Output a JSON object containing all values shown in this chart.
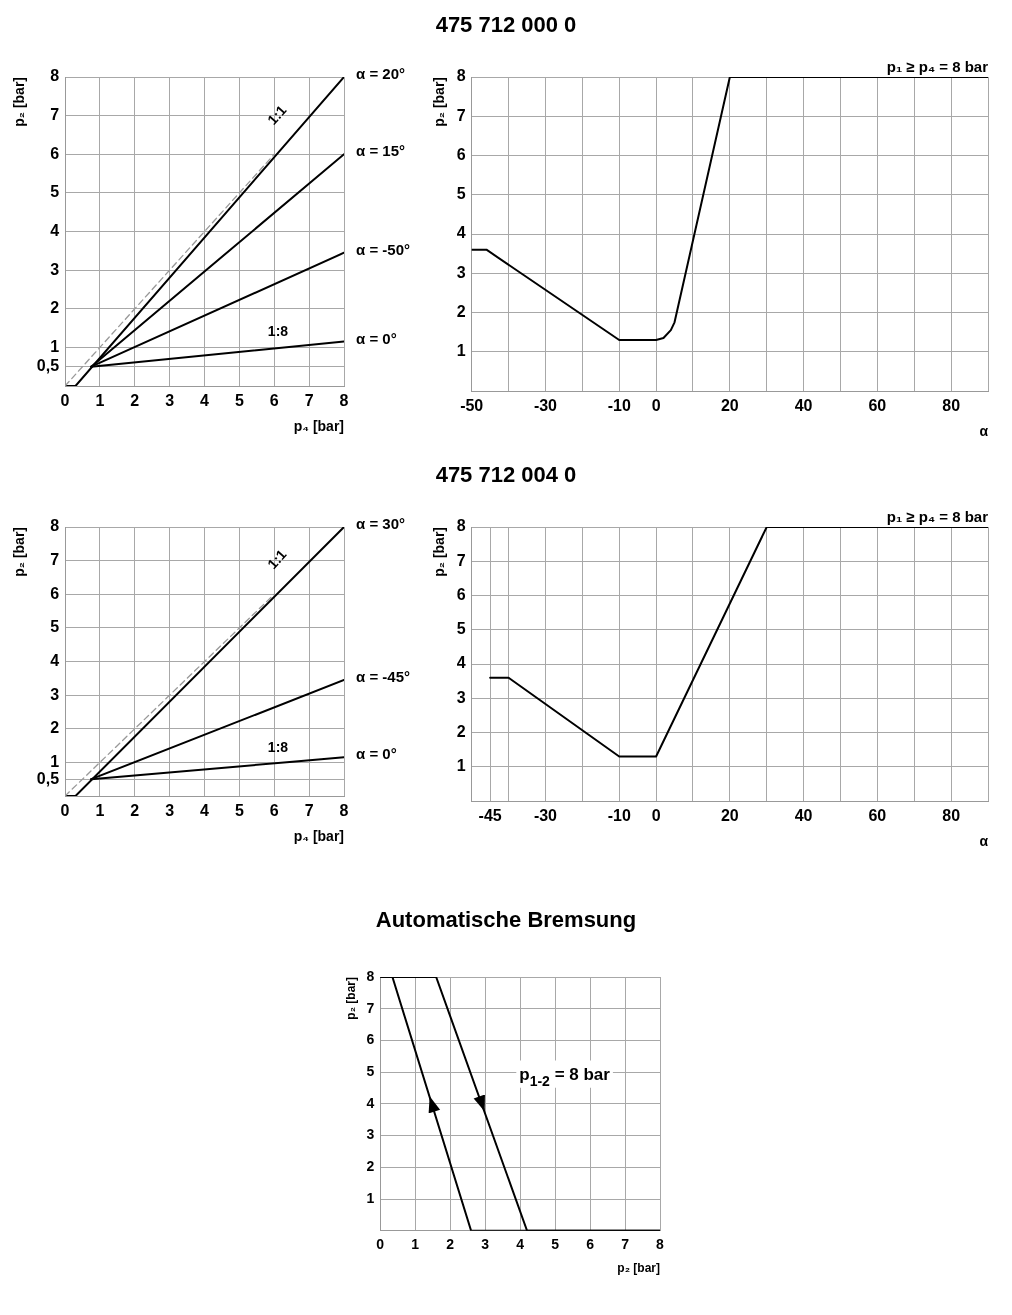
{
  "chart_data": [
    {
      "type": "line",
      "xlabel": "p₄ [bar]",
      "ylabel": "p₂ [bar]",
      "xlim": [
        0,
        8
      ],
      "xticks": [
        0,
        1,
        2,
        3,
        4,
        5,
        6,
        7,
        8
      ],
      "ylim": [
        0,
        8
      ],
      "yticks": [
        {
          "value": 0.5,
          "label": "0,5"
        },
        1,
        2,
        3,
        4,
        5,
        6,
        7,
        8
      ],
      "grid": true,
      "legend": false,
      "series": [
        {
          "color": "#999999",
          "line_style": "dashed",
          "x": [
            0,
            6
          ],
          "values": [
            0,
            6
          ]
        },
        {
          "name": "α = 20°",
          "color": "#000000",
          "x": [
            0.05,
            0.3,
            8
          ],
          "values": [
            0,
            0,
            8
          ]
        },
        {
          "name": "α = 15°",
          "color": "#000000",
          "x": [
            0.75,
            8
          ],
          "values": [
            0.5,
            6
          ]
        },
        {
          "name": "α = -50°",
          "color": "#000000",
          "x": [
            0.75,
            8
          ],
          "values": [
            0.5,
            3.45
          ]
        },
        {
          "name": "α = 0°",
          "color": "#000000",
          "x": [
            0.75,
            8
          ],
          "values": [
            0.5,
            1.15
          ]
        }
      ],
      "annotations": [
        "1:1",
        "1:8"
      ]
    },
    {
      "type": "line",
      "title": "475 712 000 0",
      "xlabel": "α",
      "ylabel": "p₂ [bar]",
      "xlim": [
        -50,
        90
      ],
      "xticks": [
        -50,
        {
          "value": -40,
          "label": null
        },
        -30,
        {
          "value": -20,
          "label": null
        },
        -10,
        0,
        {
          "value": 10,
          "label": null
        },
        20,
        {
          "value": 30,
          "label": null
        },
        40,
        {
          "value": 50,
          "label": null
        },
        60,
        {
          "value": 70,
          "label": null
        },
        80,
        {
          "value": 90,
          "label": null
        }
      ],
      "ylim": [
        0,
        8
      ],
      "yticks": [
        1,
        2,
        3,
        4,
        5,
        6,
        7,
        8
      ],
      "grid": true,
      "legend": false,
      "series": [
        {
          "color": "#000000",
          "x": [
            -50,
            -46,
            -10,
            0,
            2,
            4,
            5,
            20,
            90
          ],
          "values": [
            3.6,
            3.6,
            1.3,
            1.3,
            1.35,
            1.55,
            1.75,
            8,
            8
          ]
        }
      ],
      "annotations": [
        "p₁ ≥ p₄ = 8 bar"
      ]
    },
    {
      "type": "line",
      "xlabel": "p₄ [bar]",
      "ylabel": "p₂ [bar]",
      "xlim": [
        0,
        8
      ],
      "xticks": [
        0,
        1,
        2,
        3,
        4,
        5,
        6,
        7,
        8
      ],
      "ylim": [
        0,
        8
      ],
      "yticks": [
        {
          "value": 0.5,
          "label": "0,5"
        },
        1,
        2,
        3,
        4,
        5,
        6,
        7,
        8
      ],
      "grid": true,
      "legend": false,
      "series": [
        {
          "color": "#999999",
          "line_style": "dashed",
          "x": [
            0,
            6
          ],
          "values": [
            0,
            6
          ]
        },
        {
          "name": "α = 30°",
          "color": "#000000",
          "x": [
            0.05,
            0.3,
            8
          ],
          "values": [
            0,
            0,
            8
          ]
        },
        {
          "name": "α = -45°",
          "color": "#000000",
          "x": [
            0.75,
            8
          ],
          "values": [
            0.5,
            3.45
          ]
        },
        {
          "name": "α = 0°",
          "color": "#000000",
          "x": [
            0.75,
            8
          ],
          "values": [
            0.5,
            1.15
          ]
        }
      ],
      "annotations": [
        "1:1",
        "1:8"
      ]
    },
    {
      "type": "line",
      "title": "475 712 004 0",
      "xlabel": "α",
      "ylabel": "p₂ [bar]",
      "xlim": [
        -50,
        90
      ],
      "xticks": [
        {
          "value": -50,
          "label": null
        },
        -45,
        {
          "value": -40,
          "label": null
        },
        -30,
        {
          "value": -20,
          "label": null
        },
        -10,
        0,
        {
          "value": 10,
          "label": null
        },
        20,
        {
          "value": 30,
          "label": null
        },
        40,
        {
          "value": 50,
          "label": null
        },
        60,
        {
          "value": 70,
          "label": null
        },
        80,
        {
          "value": 90,
          "label": null
        }
      ],
      "ylim": [
        0,
        8
      ],
      "yticks": [
        1,
        2,
        3,
        4,
        5,
        6,
        7,
        8
      ],
      "grid": true,
      "legend": false,
      "series": [
        {
          "color": "#000000",
          "x": [
            -45,
            -40,
            -10,
            0,
            30,
            90
          ],
          "values": [
            3.6,
            3.6,
            1.3,
            1.3,
            8,
            8
          ]
        }
      ],
      "annotations": [
        "p₁ ≥ p₄ = 8 bar"
      ]
    },
    {
      "type": "line",
      "title": "Automatische Bremsung",
      "xlabel": "p₂ [bar]",
      "ylabel": "p₂ [bar]",
      "xlim": [
        0,
        8
      ],
      "xticks": [
        0,
        1,
        2,
        3,
        4,
        5,
        6,
        7,
        8
      ],
      "ylim": [
        0,
        8
      ],
      "yticks": [
        1,
        2,
        3,
        4,
        5,
        6,
        7,
        8
      ],
      "grid": true,
      "legend": false,
      "series": [
        {
          "color": "#000000",
          "x": [
            0,
            1.6,
            4.2,
            8
          ],
          "values": [
            8,
            8,
            0,
            0
          ]
        },
        {
          "color": "#000000",
          "x": [
            8,
            2.6,
            0.35
          ],
          "values": [
            0,
            0,
            8
          ]
        }
      ],
      "annotations": [
        "p$_{1-2}$ = 8 bar"
      ]
    }
  ]
}
